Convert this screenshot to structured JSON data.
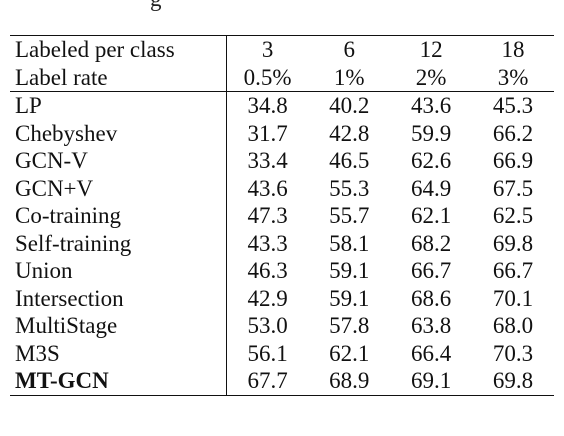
{
  "caption_fragment": "g",
  "header": {
    "row1_label": "Labeled per class",
    "row2_label": "Label rate",
    "labels_per_class": [
      "3",
      "6",
      "12",
      "18"
    ],
    "label_rates": [
      "0.5%",
      "1%",
      "2%",
      "3%"
    ]
  },
  "rows": [
    {
      "method": "LP",
      "values": [
        "34.8",
        "40.2",
        "43.6",
        "45.3"
      ]
    },
    {
      "method": "Chebyshev",
      "values": [
        "31.7",
        "42.8",
        "59.9",
        "66.2"
      ]
    },
    {
      "method": "GCN-V",
      "values": [
        "33.4",
        "46.5",
        "62.6",
        "66.9"
      ]
    },
    {
      "method": "GCN+V",
      "values": [
        "43.6",
        "55.3",
        "64.9",
        "67.5"
      ]
    },
    {
      "method": "Co-training",
      "values": [
        "47.3",
        "55.7",
        "62.1",
        "62.5"
      ]
    },
    {
      "method": "Self-training",
      "values": [
        "43.3",
        "58.1",
        "68.2",
        "69.8"
      ]
    },
    {
      "method": "Union",
      "values": [
        "46.3",
        "59.1",
        "66.7",
        "66.7"
      ]
    },
    {
      "method": "Intersection",
      "values": [
        "42.9",
        "59.1",
        "68.6",
        "70.1"
      ]
    },
    {
      "method": "MultiStage",
      "values": [
        "53.0",
        "57.8",
        "63.8",
        "68.0"
      ]
    },
    {
      "method": "M3S",
      "values": [
        "56.1",
        "62.1",
        "66.4",
        "70.3"
      ]
    },
    {
      "method": "MT-GCN",
      "values": [
        "67.7",
        "68.9",
        "69.1",
        "69.8"
      ],
      "bold": true
    }
  ]
}
